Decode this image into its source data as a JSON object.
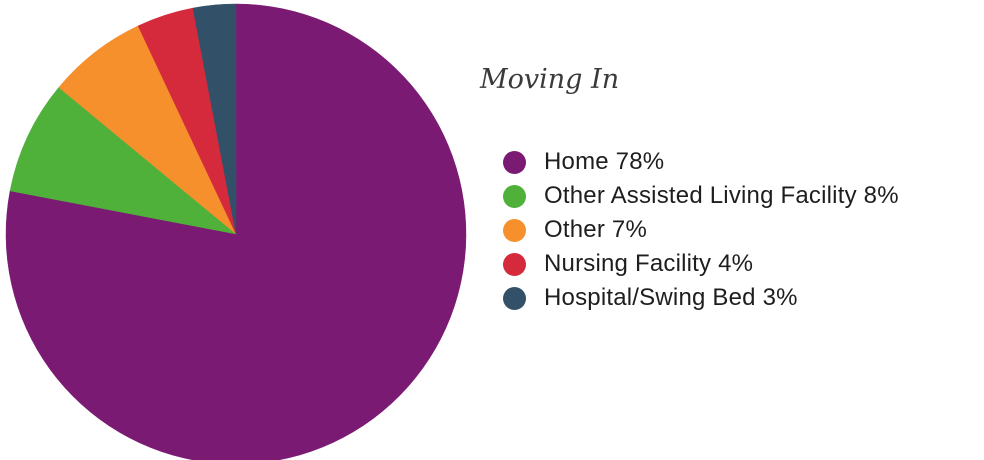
{
  "chart_data": {
    "type": "pie",
    "title": "Moving In",
    "legend_placement": "right",
    "slices": [
      {
        "label": "Home",
        "value": 78,
        "legend_text": "Home 78%",
        "color": "#7b1a72"
      },
      {
        "label": "Other Assisted Living Facility",
        "value": 8,
        "legend_text": "Other Assisted Living Facility 8%",
        "color": "#4fb03a"
      },
      {
        "label": "Other",
        "value": 7,
        "legend_text": "Other 7%",
        "color": "#f5902c"
      },
      {
        "label": "Nursing Facility",
        "value": 4,
        "legend_text": "Nursing Facility 4%",
        "color": "#d42a3c"
      },
      {
        "label": "Hospital/Swing Bed",
        "value": 3,
        "legend_text": "Hospital/Swing Bed 3%",
        "color": "#325067"
      }
    ]
  }
}
